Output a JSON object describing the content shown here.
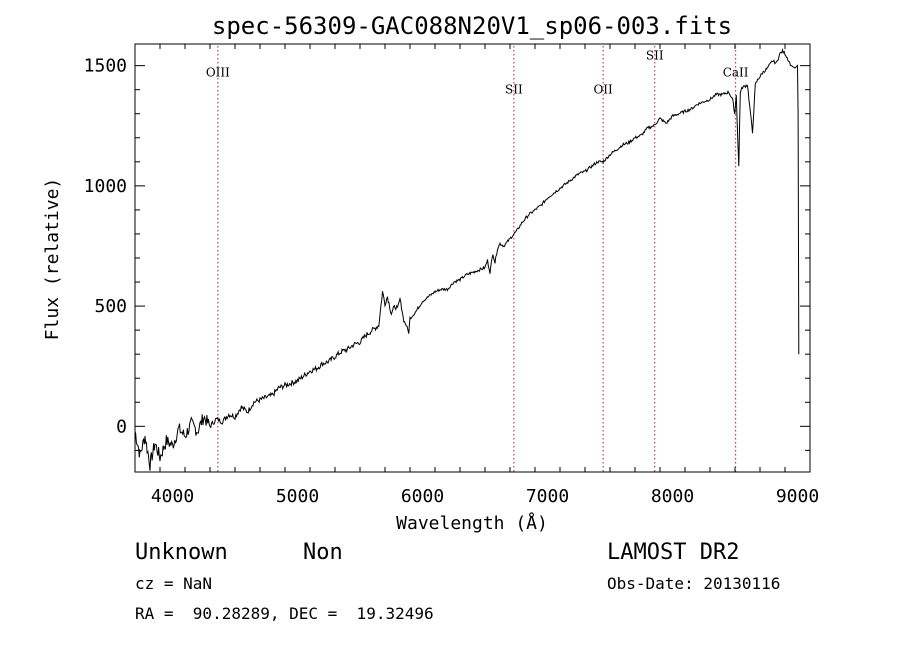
{
  "chart_data": {
    "type": "line",
    "title": "spec-56309-GAC088N20V1_sp06-003.fits",
    "xlabel": "Wavelength (Å)",
    "ylabel": "Flux (relative)",
    "xlim": [
      3700,
      9100
    ],
    "ylim": [
      -190,
      1590
    ],
    "xticks": [
      4000,
      5000,
      6000,
      7000,
      8000,
      9000
    ],
    "yticks": [
      0,
      500,
      1000,
      1500
    ],
    "line_color": "#000000",
    "marker_color": "#b22222",
    "lines": [
      {
        "label": "OIII",
        "x": 4363,
        "label_y": 1455
      },
      {
        "label": "SII",
        "x": 6731,
        "label_y": 1385
      },
      {
        "label": "OII",
        "x": 7445,
        "label_y": 1385
      },
      {
        "label": "SII",
        "x": 7858,
        "label_y": 1525
      },
      {
        "label": "CaII",
        "x": 8505,
        "label_y": 1455
      }
    ],
    "series": [
      {
        "x": [
          3700,
          3740,
          3780,
          3820,
          3860,
          3900,
          3950,
          4000,
          4050,
          4100,
          4150,
          4200,
          4250,
          4300,
          4350,
          4400,
          4450,
          4500,
          4550,
          4600,
          4650,
          4700,
          4750,
          4800,
          4850,
          4900,
          4950,
          5000,
          5050,
          5100,
          5150,
          5200,
          5250,
          5300,
          5350,
          5400,
          5450,
          5500,
          5550,
          5600,
          5650,
          5680,
          5700,
          5720,
          5750,
          5780,
          5800,
          5820,
          5850,
          5870,
          5890,
          5900,
          5920,
          5950,
          6000,
          6050,
          6100,
          6150,
          6200,
          6250,
          6300,
          6350,
          6400,
          6450,
          6500,
          6520,
          6540,
          6563,
          6580,
          6600,
          6620,
          6650,
          6700,
          6731,
          6750,
          6800,
          6850,
          6900,
          6950,
          7000,
          7050,
          7100,
          7150,
          7200,
          7250,
          7300,
          7350,
          7400,
          7445,
          7500,
          7550,
          7600,
          7650,
          7700,
          7750,
          7800,
          7850,
          7900,
          7950,
          8000,
          8050,
          8100,
          8150,
          8200,
          8250,
          8300,
          8350,
          8400,
          8450,
          8480,
          8498,
          8510,
          8530,
          8542,
          8560,
          8600,
          8640,
          8662,
          8680,
          8720,
          8760,
          8800,
          8830,
          8860,
          8880,
          8900,
          8930,
          8950,
          8980,
          9000,
          9005,
          9010
        ],
        "y": [
          -20,
          -120,
          -40,
          -160,
          -70,
          -130,
          -60,
          -80,
          -10,
          -40,
          10,
          -20,
          40,
          0,
          30,
          20,
          50,
          40,
          80,
          60,
          100,
          110,
          120,
          130,
          160,
          170,
          180,
          190,
          210,
          230,
          240,
          260,
          270,
          290,
          310,
          320,
          340,
          350,
          380,
          400,
          420,
          560,
          510,
          540,
          470,
          500,
          490,
          530,
          440,
          420,
          390,
          450,
          460,
          480,
          520,
          540,
          560,
          570,
          570,
          600,
          610,
          630,
          640,
          650,
          660,
          690,
          640,
          720,
          680,
          740,
          760,
          750,
          780,
          800,
          810,
          850,
          880,
          900,
          920,
          950,
          970,
          990,
          1010,
          1030,
          1050,
          1060,
          1080,
          1100,
          1100,
          1130,
          1150,
          1170,
          1180,
          1200,
          1210,
          1240,
          1250,
          1280,
          1260,
          1290,
          1300,
          1310,
          1320,
          1340,
          1350,
          1360,
          1380,
          1380,
          1390,
          1360,
          1300,
          1380,
          1080,
          1390,
          1410,
          1420,
          1220,
          1420,
          1440,
          1470,
          1490,
          1520,
          1510,
          1550,
          1560,
          1550,
          1520,
          1500,
          1490,
          1500,
          1300,
          300
        ]
      }
    ]
  },
  "footer": {
    "object_class": "Unknown",
    "object_subclass": "Non",
    "cz": "cz = NaN",
    "radec": "RA =  90.28289, DEC =  19.32496",
    "survey": "LAMOST DR2",
    "obs_date": "Obs-Date: 20130116"
  }
}
